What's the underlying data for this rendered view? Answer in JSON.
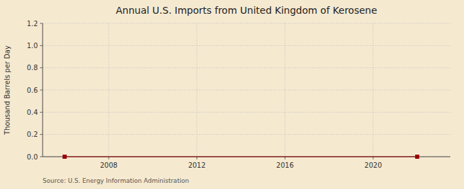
{
  "chart_data": {
    "type": "line",
    "title": "Annual U.S. Imports from United Kingdom of Kerosene",
    "ylabel": "Thousand Barrels per Day",
    "source": "Source: U.S. Energy Information Administration",
    "x": [
      2006,
      2022
    ],
    "values": [
      0.0,
      0.0
    ],
    "color": "#990000",
    "marker": "square",
    "line_style": "solid",
    "xlim": [
      2005.0,
      2023.5
    ],
    "ylim": [
      0.0,
      1.2
    ],
    "xticks": [
      2008,
      2012,
      2016,
      2020
    ],
    "yticks": [
      {
        "value": 0.0,
        "label": "0.0"
      },
      0.2,
      0.4,
      0.6,
      0.8,
      {
        "value": 1.0,
        "label": "1.0"
      },
      1.2
    ],
    "grid": true
  }
}
